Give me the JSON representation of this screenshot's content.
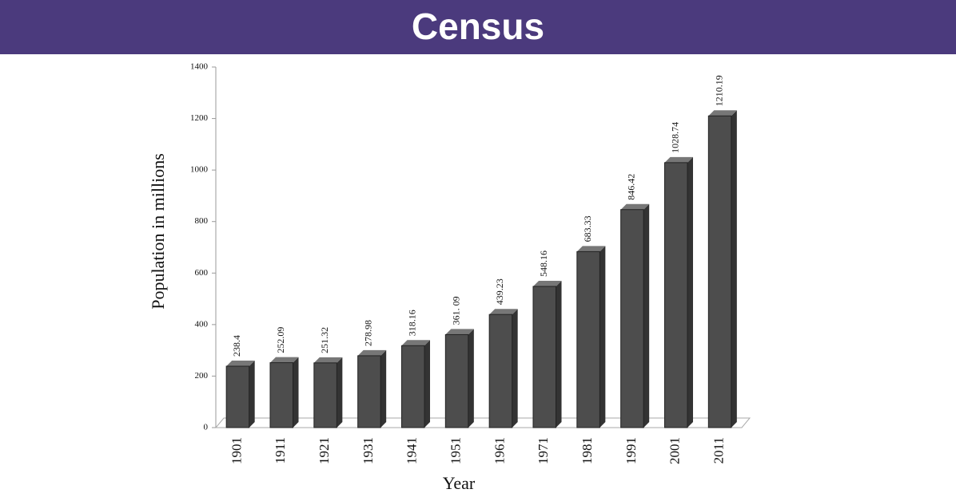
{
  "chart_data": {
    "type": "bar",
    "title": "Census",
    "x_label": "Year",
    "y_label": "Population in millions",
    "categories": [
      "1901",
      "1911",
      "1921",
      "1931",
      "1941",
      "1951",
      "1961",
      "1971",
      "1981",
      "1991",
      "2001",
      "2011"
    ],
    "values": [
      238.4,
      252.09,
      251.32,
      278.98,
      318.16,
      361.09,
      439.23,
      548.16,
      683.33,
      846.42,
      1028.74,
      1210.19
    ],
    "value_labels": [
      "238.4",
      "252.09",
      "251.32",
      "278.98",
      "318.16",
      "361. 09",
      "439.23",
      "548.16",
      "683.33",
      "846.42",
      "1028.74",
      "1210.19"
    ],
    "color": "#4d4d4d",
    "ylim": [
      0,
      1400
    ],
    "yticks": [
      0,
      200,
      400,
      600,
      800,
      1000,
      1200,
      1400
    ],
    "grid": false
  }
}
